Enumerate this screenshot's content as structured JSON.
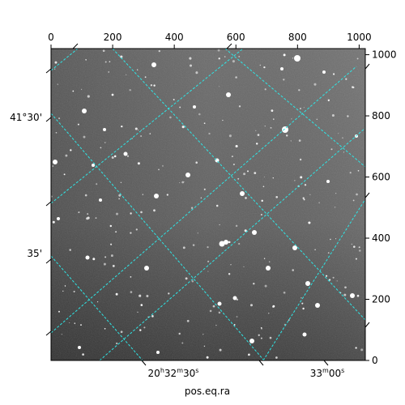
{
  "chart_data": {
    "type": "image",
    "title": "",
    "image": "astronomical sky image (grayscale star field) with WCS coordinate grid",
    "colormap": "gray",
    "grid": true,
    "grid_color": "#2ee6e6",
    "xlabel": "pos.eq.ra",
    "pixel_axes": {
      "x": {
        "range": [
          0,
          1020
        ],
        "ticks": [
          0,
          200,
          400,
          600,
          800,
          1000
        ],
        "position": "top"
      },
      "y": {
        "range": [
          0,
          1020
        ],
        "ticks": [
          0,
          200,
          400,
          600,
          800,
          1000
        ],
        "position": "right"
      }
    },
    "world_axes": {
      "ra": {
        "position": "bottom",
        "tick_labels": [
          {
            "h": "20",
            "m": "32",
            "s": "30",
            "label": "20h32m30s"
          },
          {
            "h": "",
            "m": "33",
            "s": "00",
            "label": "33m00s"
          }
        ]
      },
      "dec": {
        "position": "left",
        "tick_labels": [
          "41°30'",
          "35'"
        ]
      }
    }
  }
}
